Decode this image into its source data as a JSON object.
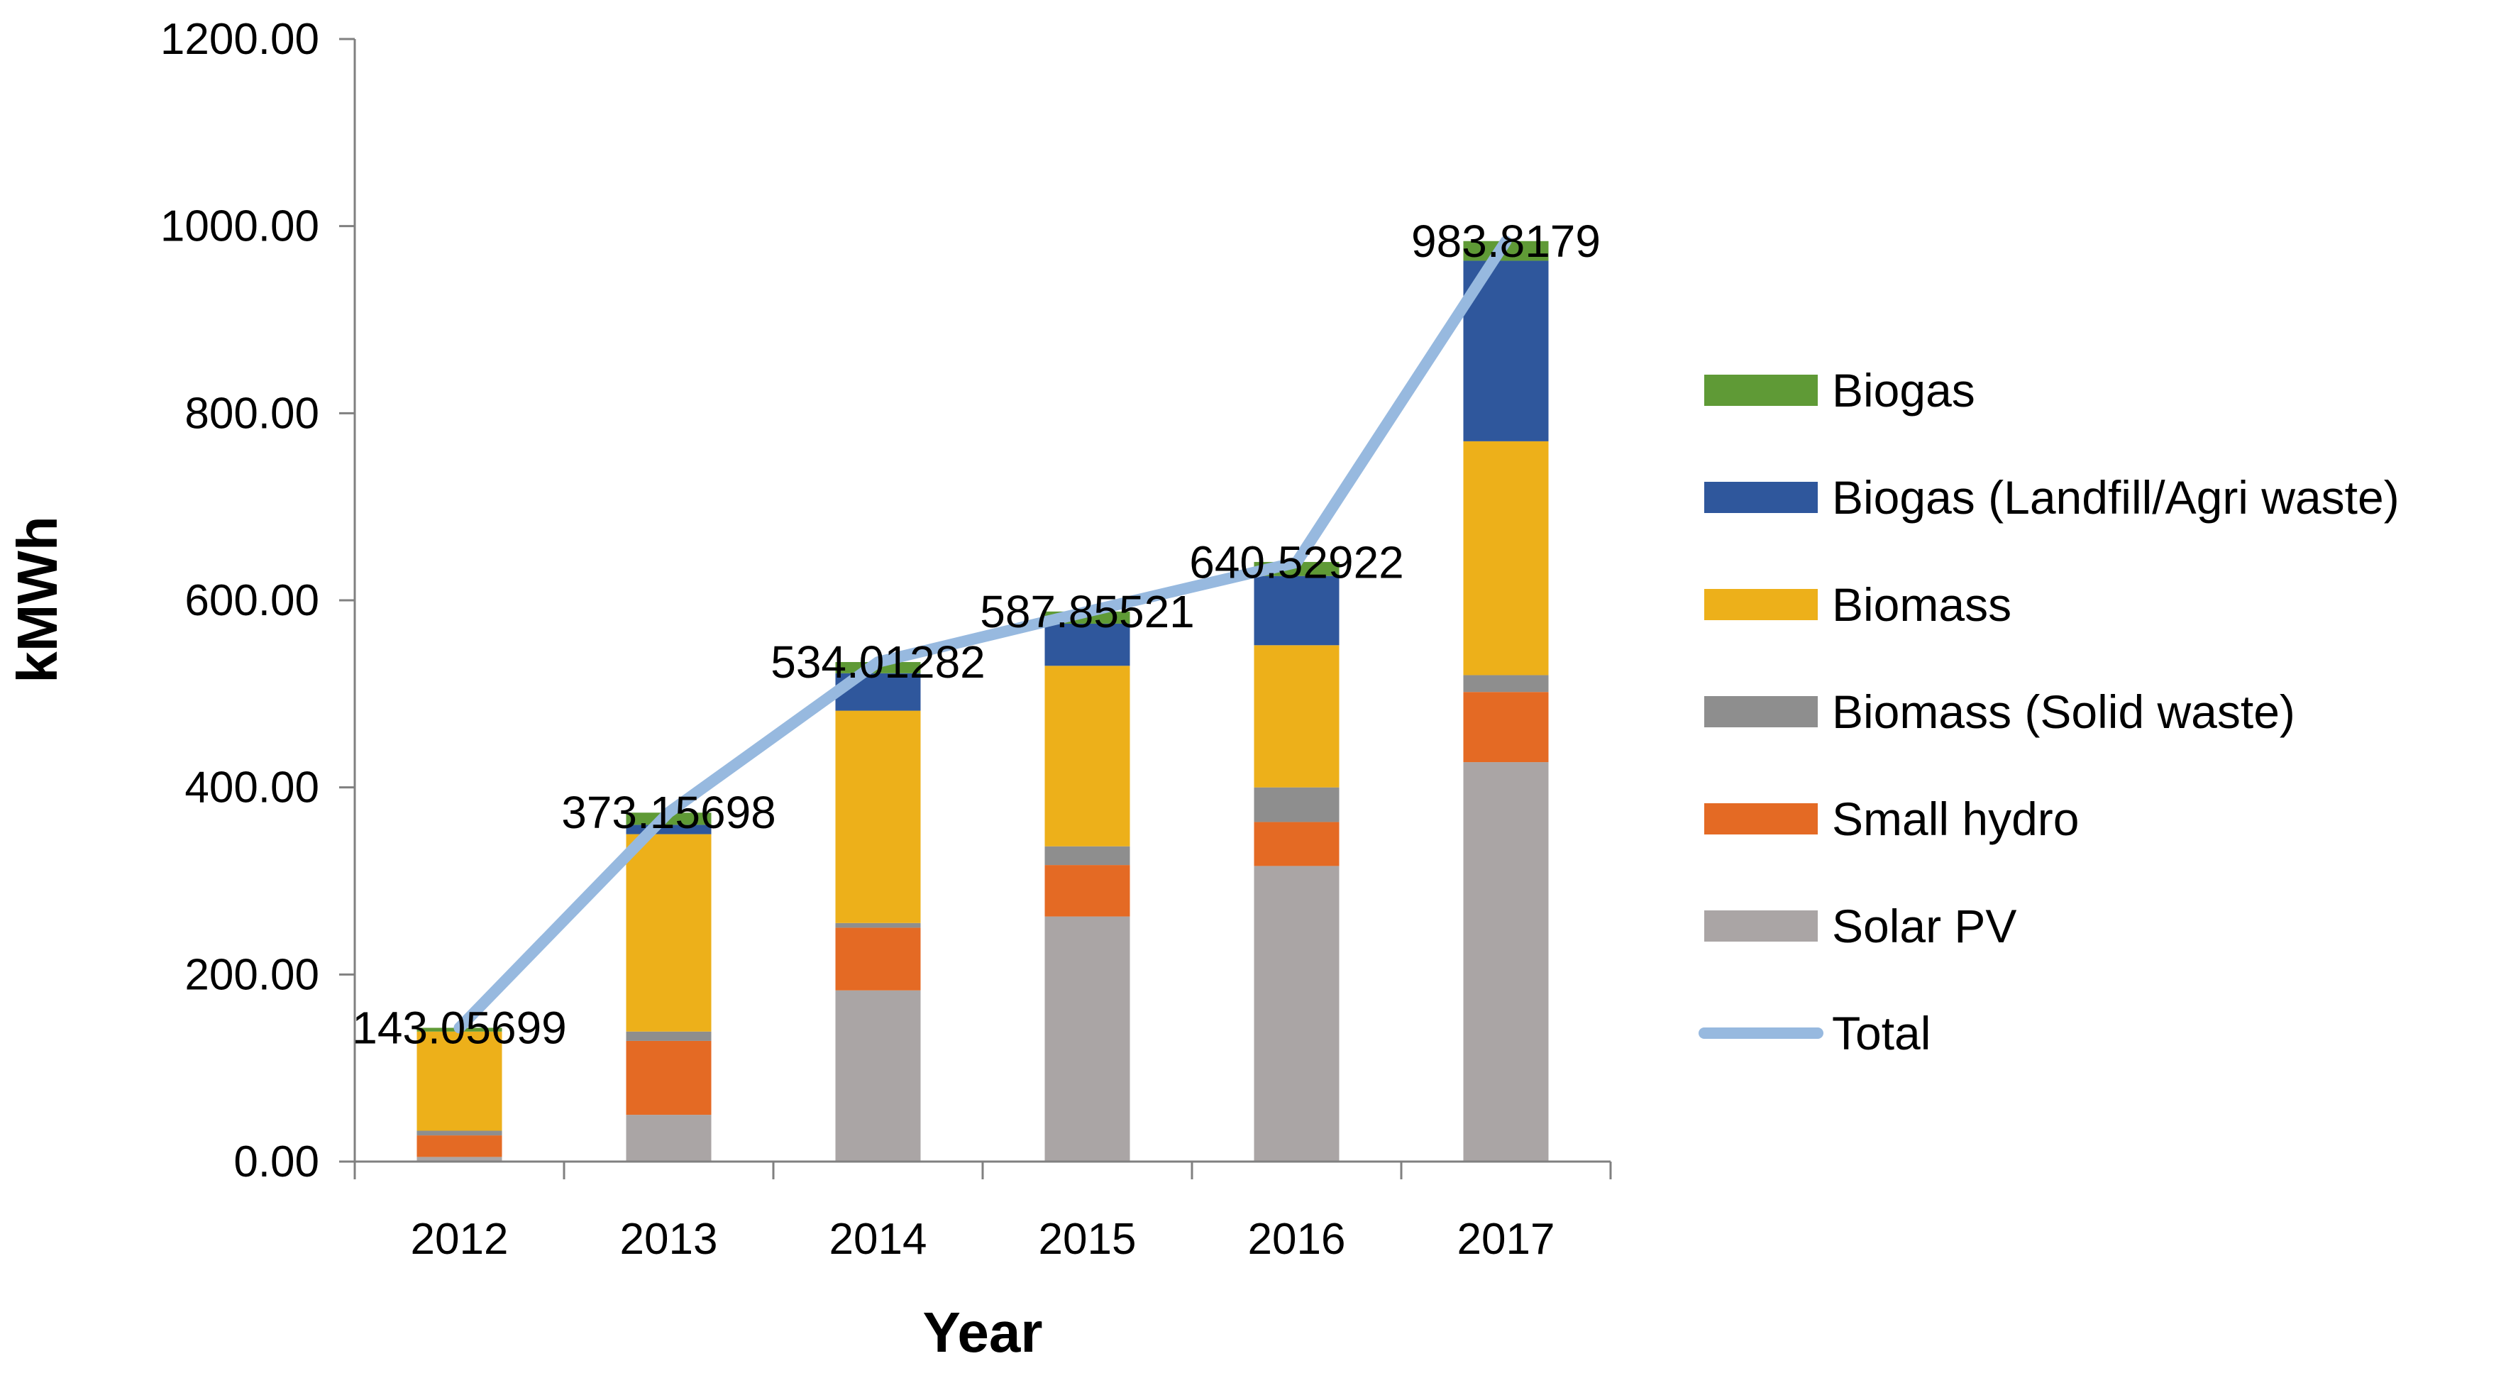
{
  "chart_data": {
    "type": "bar",
    "stacked": true,
    "title": "",
    "xlabel": "Year",
    "ylabel": "kMWh",
    "ylim": [
      0,
      1200
    ],
    "yticks": [
      "0.00",
      "200.00",
      "400.00",
      "600.00",
      "800.00",
      "1000.00",
      "1200.00"
    ],
    "categories": [
      "2012",
      "2013",
      "2014",
      "2015",
      "2016",
      "2017"
    ],
    "series": [
      {
        "name": "Solar PV",
        "color": "#aaa5a5",
        "values": [
          5,
          50,
          183,
          262,
          316,
          427
        ]
      },
      {
        "name": "Small hydro",
        "color": "#e46a24",
        "values": [
          23,
          79,
          67,
          55,
          47,
          75
        ]
      },
      {
        "name": "Biomass (Solid waste)",
        "color": "#8e8e8e",
        "values": [
          5,
          10,
          5,
          20,
          37,
          18
        ]
      },
      {
        "name": "Biomass",
        "color": "#edb01a",
        "values": [
          106,
          211,
          227,
          193,
          152,
          250
        ]
      },
      {
        "name": "Biogas (Landfill/Agri waste)",
        "color": "#2f579c",
        "values": [
          0,
          10,
          40,
          45,
          74,
          193
        ]
      },
      {
        "name": "Biogas",
        "color": "#5f9a36",
        "values": [
          4,
          13,
          12,
          13,
          15,
          21
        ]
      }
    ],
    "line_series": {
      "name": "Total",
      "color": "#97b9df",
      "values": [
        143.05699,
        373.15698,
        534.01282,
        587.85521,
        640.52922,
        983.8179
      ],
      "labels": [
        "143.05699",
        "373.15698",
        "534.01282",
        "587.85521",
        "640.52922",
        "983.8179"
      ]
    },
    "legend_order": [
      "Biogas",
      "Biogas (Landfill/Agri waste)",
      "Biomass",
      "Biomass (Solid waste)",
      "Small hydro",
      "Solar PV",
      "Total"
    ],
    "legend_position": "right",
    "grid": false
  }
}
